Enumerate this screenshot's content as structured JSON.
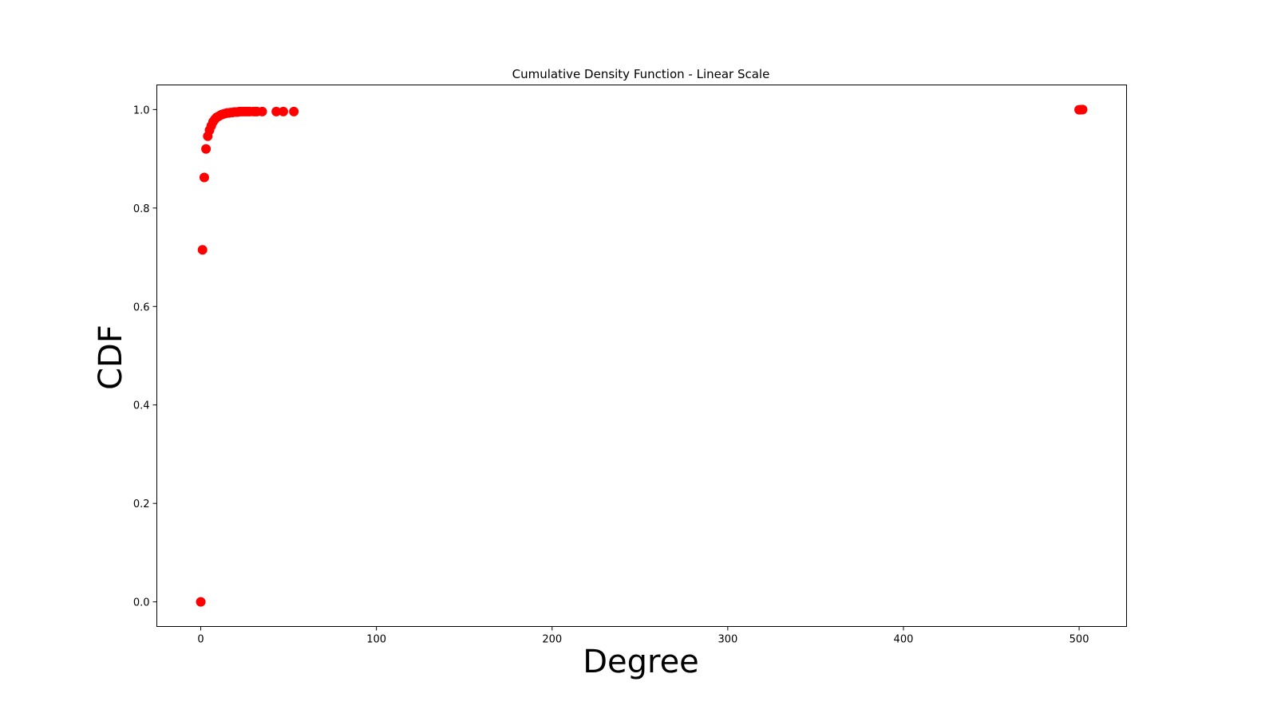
{
  "chart_data": {
    "type": "scatter",
    "title": "Cumulative Density Function - Linear Scale",
    "xlabel": "Degree",
    "ylabel": "CDF",
    "xlim": [
      -25,
      527
    ],
    "ylim": [
      -0.05,
      1.05
    ],
    "xticks": [
      0,
      100,
      200,
      300,
      400,
      500
    ],
    "xtick_labels": [
      "0",
      "100",
      "200",
      "300",
      "400",
      "500"
    ],
    "yticks": [
      0.0,
      0.2,
      0.4,
      0.6,
      0.8,
      1.0
    ],
    "ytick_labels": [
      "0.0",
      "0.2",
      "0.4",
      "0.6",
      "0.8",
      "1.0"
    ],
    "grid": false,
    "marker_color": "#ff0000",
    "series": [
      {
        "x": [
          0,
          1,
          2,
          3,
          4,
          5,
          6,
          7,
          8,
          9,
          10,
          11,
          12,
          13,
          14,
          15,
          16,
          17,
          18,
          19,
          20,
          21,
          22,
          23,
          24,
          25,
          26,
          27,
          28,
          30,
          31,
          32,
          35,
          43,
          47,
          53,
          500,
          501,
          502
        ],
        "y": [
          0.0,
          0.715,
          0.862,
          0.92,
          0.946,
          0.958,
          0.967,
          0.975,
          0.98,
          0.984,
          0.986,
          0.988,
          0.99,
          0.991,
          0.992,
          0.993,
          0.993,
          0.994,
          0.994,
          0.995,
          0.995,
          0.995,
          0.996,
          0.996,
          0.996,
          0.996,
          0.996,
          0.996,
          0.996,
          0.996,
          0.996,
          0.996,
          0.996,
          0.996,
          0.996,
          0.996,
          0.9995,
          0.9997,
          1.0
        ]
      }
    ]
  }
}
